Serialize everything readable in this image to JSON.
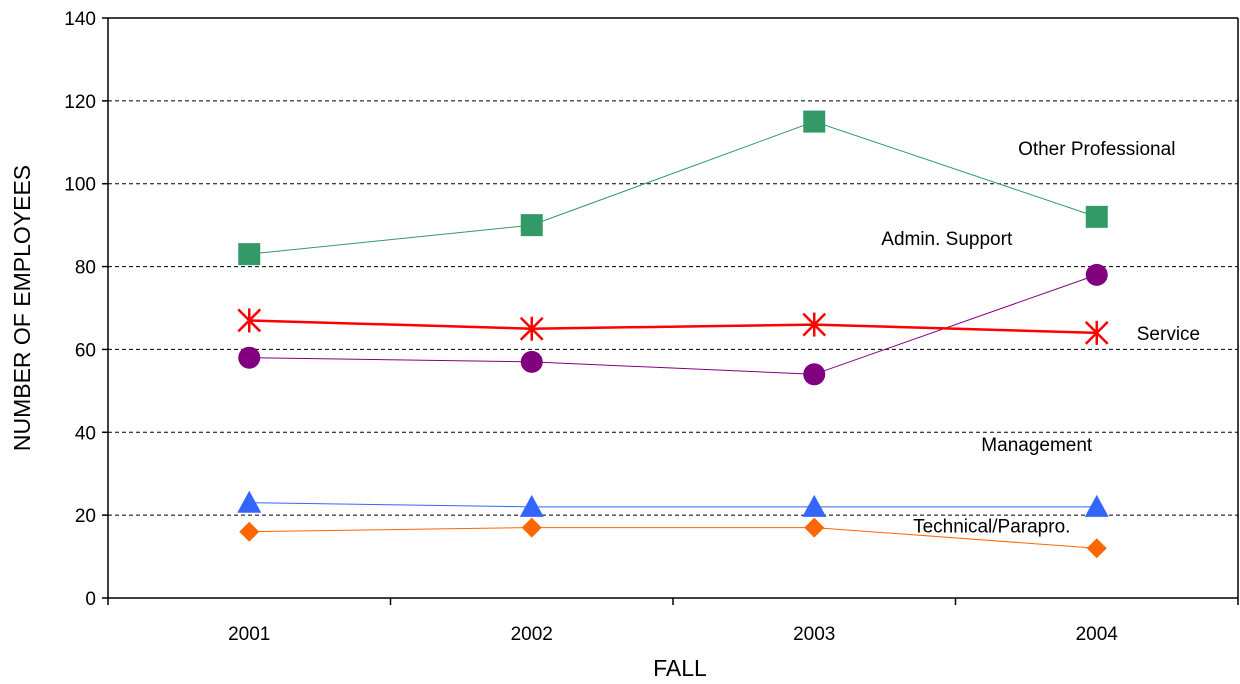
{
  "chart_data": {
    "type": "line",
    "xlabel": "FALL",
    "ylabel": "NUMBER OF EMPLOYEES",
    "categories": [
      "2001",
      "2002",
      "2003",
      "2004"
    ],
    "ylim": [
      0,
      140
    ],
    "yticks": [
      0,
      20,
      40,
      60,
      80,
      100,
      120,
      140
    ],
    "grid": "horizontal dashed",
    "legend": "inline labels",
    "series": [
      {
        "name": "Other Professional",
        "values": [
          83,
          90,
          115,
          92
        ],
        "color": "#339966",
        "marker": "square"
      },
      {
        "name": "Admin. Support",
        "values": [
          58,
          57,
          54,
          78
        ],
        "color": "#800080",
        "marker": "circle"
      },
      {
        "name": "Service",
        "values": [
          67,
          65,
          66,
          64
        ],
        "color": "#ff0000",
        "marker": "asterisk"
      },
      {
        "name": "Management",
        "values": [
          23,
          22,
          22,
          22
        ],
        "color": "#3366ff",
        "marker": "triangle"
      },
      {
        "name": "Technical/Parapro.",
        "values": [
          16,
          17,
          17,
          12
        ],
        "color": "#ff6600",
        "marker": "diamond"
      }
    ]
  }
}
